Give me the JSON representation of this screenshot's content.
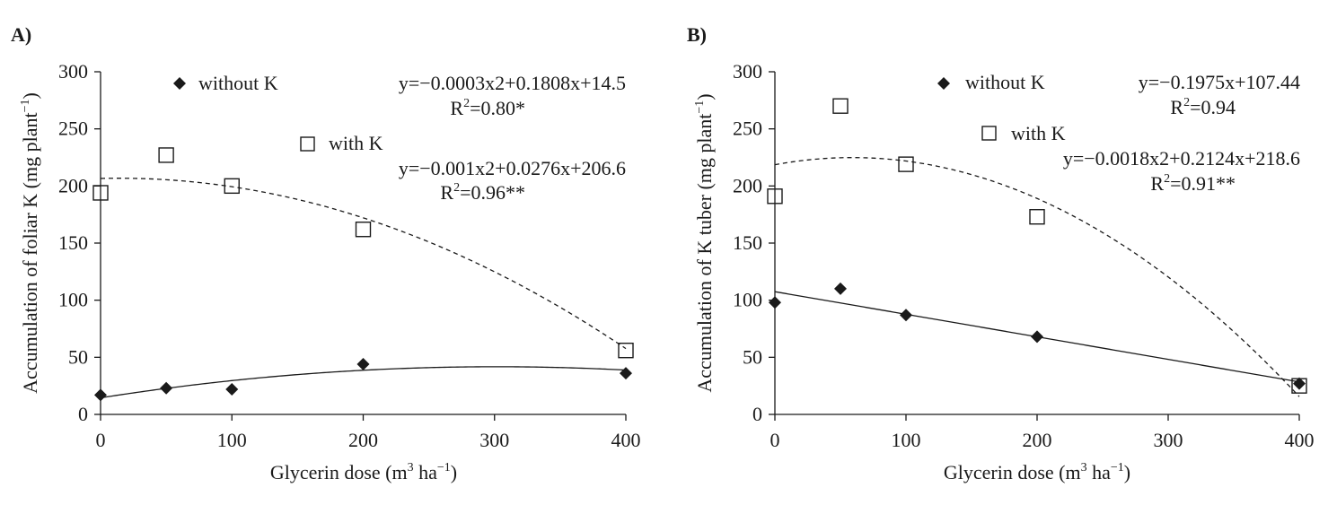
{
  "chart_data": [
    {
      "type": "scatter",
      "panel": "A)",
      "xlabel": "Glycerin dose (m³ ha⁻¹)",
      "xlabel_parts": {
        "pre": "Glycerin dose (m",
        "sup1": "3",
        "mid": " ha",
        "sup2": "−1",
        "post": ")"
      },
      "ylabel": "Accumulation of foliar K (mg plant⁻¹)",
      "ylabel_parts": {
        "pre": "Accumulation of foliar K (mg plant",
        "sup": "−1",
        "post": ")"
      },
      "xlim": [
        0,
        400
      ],
      "ylim": [
        0,
        300
      ],
      "xticks": [
        0,
        100,
        200,
        300,
        400
      ],
      "yticks": [
        0,
        50,
        100,
        150,
        200,
        250,
        300
      ],
      "grid": false,
      "series": [
        {
          "name": "without K",
          "marker": "filled-diamond",
          "line": "solid",
          "x": [
            0,
            50,
            100,
            200,
            400
          ],
          "y": [
            17,
            23,
            22,
            44,
            36
          ],
          "fit": {
            "a": -0.0003,
            "b": 0.1808,
            "c": 14.5
          },
          "equation": "y=−0.0003x2+0.1808x+14.5",
          "r2": {
            "pre": "R",
            "sup": "2",
            "post": "=0.80*"
          }
        },
        {
          "name": "with K",
          "marker": "open-square",
          "line": "dashed",
          "x": [
            0,
            50,
            100,
            200,
            400
          ],
          "y": [
            194,
            227,
            200,
            162,
            56
          ],
          "fit": {
            "a": -0.001,
            "b": 0.0276,
            "c": 206.6
          },
          "equation": "y=−0.001x2+0.0276x+206.6",
          "r2": {
            "pre": "R",
            "sup": "2",
            "post": "=0.96**"
          }
        }
      ]
    },
    {
      "type": "scatter",
      "panel": "B)",
      "xlabel": "Glycerin dose (m³ ha⁻¹)",
      "xlabel_parts": {
        "pre": "Glycerin dose (m",
        "sup1": "3",
        "mid": " ha",
        "sup2": "−1",
        "post": ")"
      },
      "ylabel": "Accumulation of K tuber (mg plant⁻¹)",
      "ylabel_parts": {
        "pre": "Accumulation of K tuber (mg plant",
        "sup": "−1",
        "post": ")"
      },
      "xlim": [
        0,
        400
      ],
      "ylim": [
        0,
        300
      ],
      "xticks": [
        0,
        100,
        200,
        300,
        400
      ],
      "yticks": [
        0,
        50,
        100,
        150,
        200,
        250,
        300
      ],
      "grid": false,
      "series": [
        {
          "name": "without K",
          "marker": "filled-diamond",
          "line": "solid",
          "x": [
            0,
            50,
            100,
            200,
            400
          ],
          "y": [
            98,
            110,
            87,
            68,
            27
          ],
          "fit": {
            "a": 0,
            "b": -0.1975,
            "c": 107.44
          },
          "equation": "y=−0.1975x+107.44",
          "r2": {
            "pre": "R",
            "sup": "2",
            "post": "=0.94"
          }
        },
        {
          "name": "with K",
          "marker": "open-square",
          "line": "dashed",
          "x": [
            0,
            50,
            100,
            200,
            400
          ],
          "y": [
            191,
            270,
            219,
            173,
            25
          ],
          "fit": {
            "a": -0.0018,
            "b": 0.2124,
            "c": 218.6
          },
          "equation": "y=−0.0018x2+0.2124x+218.6",
          "r2": {
            "pre": "R",
            "sup": "2",
            "post": "=0.91**"
          }
        }
      ]
    }
  ]
}
